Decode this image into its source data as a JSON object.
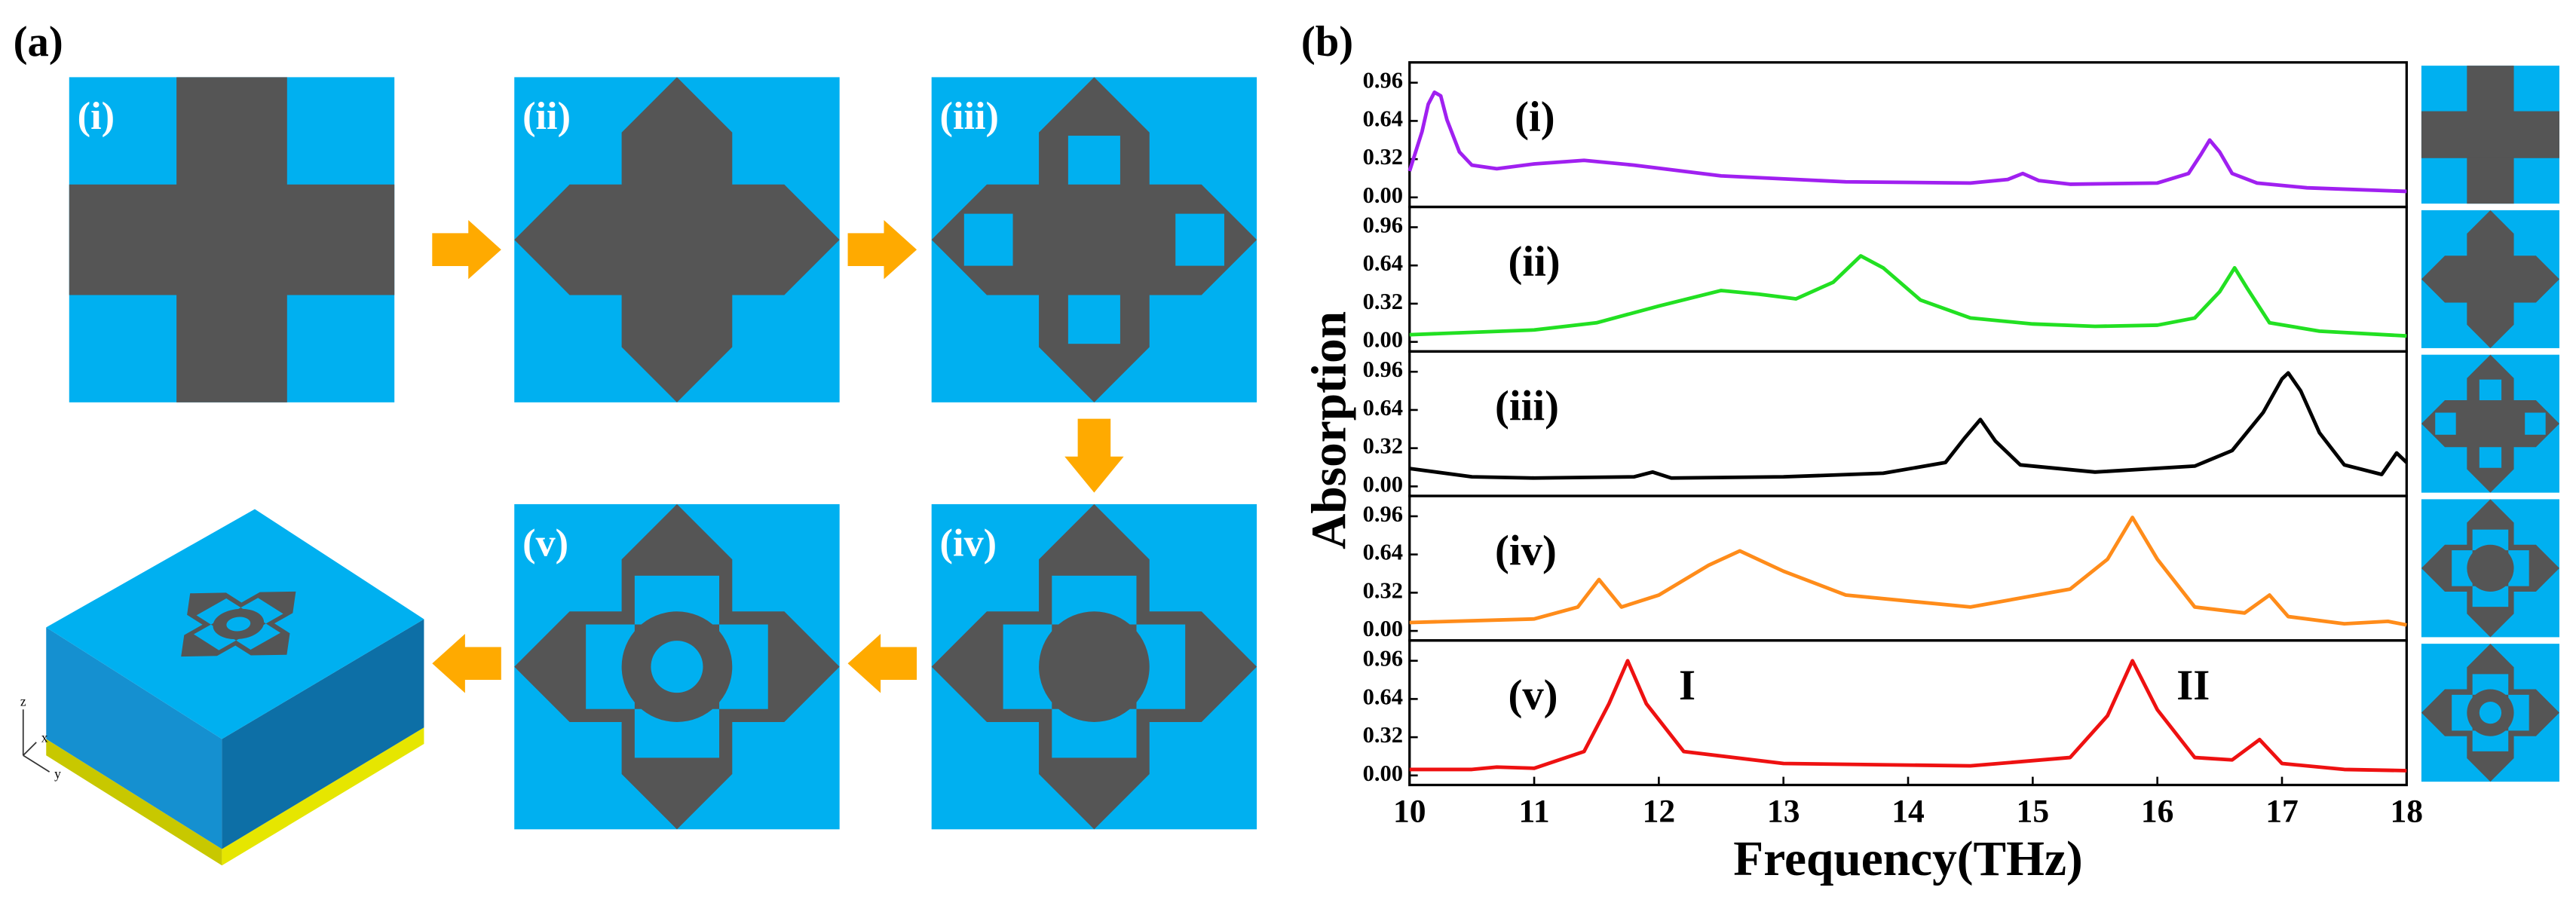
{
  "panel_a": {
    "label": "(a)",
    "steps": [
      "(i)",
      "(ii)",
      "(iii)",
      "(iv)",
      "(v)"
    ],
    "axes": [
      "z",
      "x",
      "y"
    ]
  },
  "panel_b": {
    "label": "(b)",
    "ylabel": "Absorption"
  },
  "chart_data": [
    {
      "type": "line",
      "label": "(i)",
      "color": "#a020f0",
      "xlim": [
        10,
        18
      ],
      "ylim": [
        -0.08,
        1.13
      ],
      "yticks": [
        {
          "value": 0,
          "label": "0.00"
        },
        0.32,
        0.64,
        0.96
      ],
      "x": [
        10,
        10.1,
        10.15,
        10.2,
        10.25,
        10.3,
        10.4,
        10.5,
        10.7,
        11,
        11.4,
        11.8,
        12.5,
        13.5,
        14.5,
        14.8,
        14.92,
        15.05,
        15.3,
        16,
        16.25,
        16.35,
        16.42,
        16.5,
        16.6,
        16.8,
        17.2,
        18
      ],
      "values": [
        0.22,
        0.55,
        0.78,
        0.88,
        0.85,
        0.65,
        0.38,
        0.27,
        0.24,
        0.28,
        0.31,
        0.27,
        0.18,
        0.13,
        0.12,
        0.15,
        0.2,
        0.14,
        0.11,
        0.12,
        0.2,
        0.36,
        0.48,
        0.38,
        0.2,
        0.12,
        0.08,
        0.05
      ]
    },
    {
      "type": "line",
      "label": "(ii)",
      "color": "#22e022",
      "xlim": [
        10,
        18
      ],
      "ylim": [
        -0.08,
        1.13
      ],
      "yticks": [
        {
          "value": 0,
          "label": "0.00"
        },
        0.32,
        0.64,
        0.96
      ],
      "x": [
        10,
        11,
        11.5,
        12,
        12.5,
        12.8,
        13.1,
        13.4,
        13.62,
        13.8,
        14.1,
        14.5,
        15,
        15.5,
        16,
        16.3,
        16.5,
        16.62,
        16.72,
        16.9,
        17.3,
        18
      ],
      "values": [
        0.06,
        0.1,
        0.16,
        0.3,
        0.43,
        0.4,
        0.36,
        0.5,
        0.72,
        0.62,
        0.35,
        0.2,
        0.15,
        0.13,
        0.14,
        0.2,
        0.42,
        0.62,
        0.45,
        0.16,
        0.09,
        0.05
      ]
    },
    {
      "type": "line",
      "label": "(iii)",
      "color": "#000000",
      "xlim": [
        10,
        18
      ],
      "ylim": [
        -0.08,
        1.13
      ],
      "yticks": [
        {
          "value": 0,
          "label": "0.00"
        },
        0.32,
        0.64,
        0.96
      ],
      "x": [
        10,
        10.5,
        11,
        11.8,
        11.95,
        12.1,
        13,
        13.8,
        14.3,
        14.45,
        14.58,
        14.7,
        14.9,
        15.5,
        16.3,
        16.6,
        16.85,
        17,
        17.05,
        17.15,
        17.3,
        17.5,
        17.8,
        17.92,
        18
      ],
      "values": [
        0.15,
        0.08,
        0.07,
        0.08,
        0.12,
        0.07,
        0.08,
        0.11,
        0.2,
        0.4,
        0.56,
        0.38,
        0.18,
        0.12,
        0.17,
        0.3,
        0.62,
        0.9,
        0.95,
        0.8,
        0.45,
        0.18,
        0.1,
        0.28,
        0.2
      ]
    },
    {
      "type": "line",
      "label": "(iv)",
      "color": "#ff8c1a",
      "xlim": [
        10,
        18
      ],
      "ylim": [
        -0.08,
        1.13
      ],
      "yticks": [
        {
          "value": 0,
          "label": "0.00"
        },
        0.32,
        0.64,
        0.96
      ],
      "x": [
        10,
        11,
        11.35,
        11.52,
        11.7,
        12,
        12.4,
        12.65,
        13,
        13.5,
        14.5,
        15.3,
        15.6,
        15.8,
        16,
        16.3,
        16.7,
        16.9,
        17.05,
        17.5,
        17.85,
        18
      ],
      "values": [
        0.07,
        0.1,
        0.2,
        0.43,
        0.2,
        0.3,
        0.55,
        0.67,
        0.5,
        0.3,
        0.2,
        0.35,
        0.6,
        0.95,
        0.6,
        0.2,
        0.15,
        0.3,
        0.12,
        0.06,
        0.08,
        0.05
      ]
    },
    {
      "type": "line",
      "label": "(v)",
      "color": "#ee1111",
      "xlim": [
        10,
        18
      ],
      "ylim": [
        -0.08,
        1.13
      ],
      "yticks": [
        {
          "value": 0,
          "label": "0.00"
        },
        0.32,
        0.64,
        0.96
      ],
      "xticks": [
        10,
        11,
        12,
        13,
        14,
        15,
        16,
        17,
        18
      ],
      "xlabel": "Frequency(THz)",
      "annotations": [
        "I",
        "II"
      ],
      "x": [
        10,
        10.5,
        10.7,
        11,
        11.4,
        11.6,
        11.75,
        11.9,
        12.2,
        13,
        14.5,
        15.3,
        15.6,
        15.8,
        16,
        16.3,
        16.6,
        16.82,
        17,
        17.5,
        18
      ],
      "values": [
        0.05,
        0.05,
        0.07,
        0.06,
        0.2,
        0.6,
        0.96,
        0.6,
        0.2,
        0.1,
        0.08,
        0.15,
        0.5,
        0.96,
        0.55,
        0.15,
        0.13,
        0.3,
        0.1,
        0.05,
        0.04
      ]
    }
  ]
}
